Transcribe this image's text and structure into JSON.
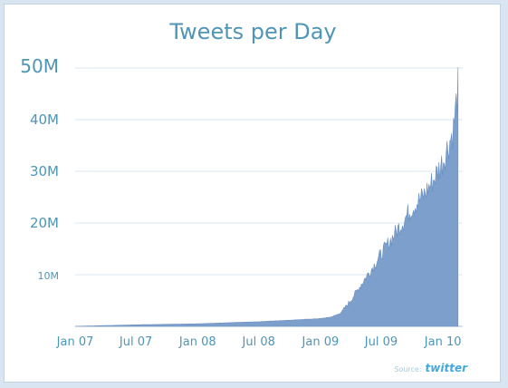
{
  "chart_data": {
    "type": "area",
    "title": "Tweets per Day",
    "xlabel": "",
    "ylabel": "",
    "x_tick_labels": [
      "Jan 07",
      "Jul 07",
      "Jan 08",
      "Jul 08",
      "Jan 09",
      "Jul 09",
      "Jan 10"
    ],
    "y_tick_labels": [
      "",
      "10M",
      "20M",
      "30M",
      "40M",
      "50M"
    ],
    "y_ticks": [
      0,
      10000000,
      20000000,
      30000000,
      40000000,
      50000000
    ],
    "ylim": [
      0,
      50000000
    ],
    "grid": true,
    "fill_color": "#7d9fcc",
    "series": [
      {
        "x": [
          "2007-01-01",
          "2007-04-01",
          "2007-07-01",
          "2007-10-01",
          "2008-01-01",
          "2008-04-01",
          "2008-07-01",
          "2008-10-01",
          "2009-01-01",
          "2009-02-01",
          "2009-03-01",
          "2009-04-01",
          "2009-05-01",
          "2009-06-01",
          "2009-07-01",
          "2009-08-01",
          "2009-09-01",
          "2009-10-01",
          "2009-11-01",
          "2009-12-01",
          "2010-01-01",
          "2010-02-01",
          "2010-02-15"
        ],
        "values": [
          5000,
          150000,
          300000,
          400000,
          500000,
          700000,
          900000,
          1200000,
          1500000,
          1800000,
          2500000,
          5000000,
          8000000,
          11000000,
          14000000,
          17000000,
          20000000,
          23000000,
          25000000,
          28000000,
          32000000,
          38000000,
          46000000
        ]
      }
    ],
    "source_label": "Source:",
    "source_brand": "twitter"
  }
}
